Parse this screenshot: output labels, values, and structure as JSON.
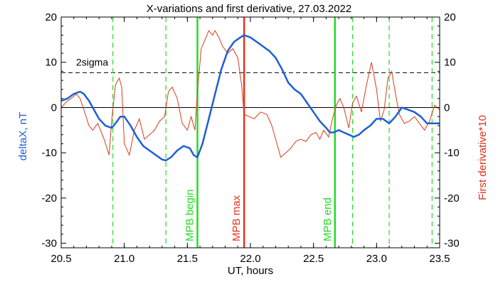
{
  "chart_data": {
    "type": "line",
    "title": "X-variations and first derivative, 27.03.2022",
    "xlabel": "UT, hours",
    "ylabel_left": "deltaX, nT",
    "ylabel_right": "First derivative*10",
    "xlim": [
      20.5,
      23.5
    ],
    "ylim_left": [
      -31,
      20
    ],
    "ylim_right": [
      -31,
      20
    ],
    "x_ticks": [
      "20.5",
      "21.0",
      "21.5",
      "22.0",
      "22.5",
      "23.0",
      "23.5"
    ],
    "y_ticks_left": [
      "20",
      "10",
      "0",
      "-10",
      "-20",
      "-30"
    ],
    "y_ticks_right": [
      "20",
      "10",
      "0",
      "-10",
      "-20",
      "-30"
    ],
    "threshold": {
      "label": "2sigma",
      "value": 7.7,
      "style": "dashed"
    },
    "zero_line": 0,
    "grid": false,
    "legend": "none",
    "colors": {
      "deltaX": "#1f5fd6",
      "derivative": "#dd3a1c",
      "mpb_markers": "#22dd22",
      "mpb_max": "#e8341c"
    },
    "vertical_lines": [
      {
        "x": 20.91,
        "style": "dashed",
        "color": "#22dd22",
        "label": ""
      },
      {
        "x": 21.33,
        "style": "dashed",
        "color": "#22dd22",
        "label": ""
      },
      {
        "x": 21.58,
        "style": "solid",
        "color": "#22dd22",
        "label": "MPB begin"
      },
      {
        "x": 21.95,
        "style": "solid",
        "color": "#e8341c",
        "label": "MPB max"
      },
      {
        "x": 22.67,
        "style": "solid",
        "color": "#22dd22",
        "label": "MPB end"
      },
      {
        "x": 22.81,
        "style": "dashed",
        "color": "#22dd22",
        "label": ""
      },
      {
        "x": 23.1,
        "style": "dashed",
        "color": "#22dd22",
        "label": ""
      },
      {
        "x": 23.44,
        "style": "dashed",
        "color": "#22dd22",
        "label": ""
      }
    ],
    "series": [
      {
        "x": [
          20.5,
          20.55,
          20.6,
          20.65,
          20.68,
          20.72,
          20.76,
          20.8,
          20.85,
          20.9,
          20.93,
          20.97,
          21.0,
          21.05,
          21.1,
          21.15,
          21.2,
          21.25,
          21.3,
          21.33,
          21.37,
          21.42,
          21.47,
          21.52,
          21.55,
          21.58,
          21.62,
          21.67,
          21.72,
          21.77,
          21.82,
          21.87,
          21.92,
          21.95,
          22.0,
          22.05,
          22.1,
          22.15,
          22.2,
          22.25,
          22.3,
          22.35,
          22.4,
          22.45,
          22.5,
          22.55,
          22.6,
          22.63,
          22.66,
          22.7,
          22.74,
          22.78,
          22.82,
          22.86,
          22.9,
          22.95,
          23.0,
          23.05,
          23.1,
          23.15,
          23.2,
          23.25,
          23.3,
          23.35,
          23.4,
          23.45,
          23.5
        ],
        "values": [
          1.5,
          2.0,
          3.0,
          3.5,
          3.0,
          1.5,
          -0.5,
          -2.5,
          -4.0,
          -4.5,
          -3.5,
          -2.0,
          -2.0,
          -4.0,
          -6.5,
          -8.5,
          -9.5,
          -10.5,
          -11.5,
          -11.7,
          -11.0,
          -9.5,
          -8.5,
          -9.0,
          -10.5,
          -11.0,
          -8.0,
          -2.5,
          3.0,
          8.5,
          12.5,
          14.5,
          15.5,
          16.0,
          15.5,
          14.5,
          13.5,
          12.5,
          11.0,
          8.5,
          5.5,
          4.0,
          3.0,
          1.0,
          -1.0,
          -3.0,
          -4.5,
          -5.5,
          -5.5,
          -5.0,
          -5.5,
          -6.0,
          -6.5,
          -6.0,
          -5.0,
          -4.0,
          -2.5,
          -2.5,
          -3.5,
          -2.0,
          0.0,
          -0.5,
          -1.0,
          -2.0,
          -3.5,
          -3.5,
          -3.5
        ]
      },
      {
        "x": [
          20.5,
          20.55,
          20.58,
          20.62,
          20.65,
          20.68,
          20.72,
          20.75,
          20.79,
          20.84,
          20.88,
          20.9,
          20.93,
          20.96,
          20.98,
          21.0,
          21.04,
          21.08,
          21.12,
          21.16,
          21.2,
          21.24,
          21.28,
          21.32,
          21.35,
          21.38,
          21.42,
          21.46,
          21.5,
          21.53,
          21.56,
          21.58,
          21.61,
          21.64,
          21.67,
          21.7,
          21.72,
          21.75,
          21.78,
          21.82,
          21.86,
          21.9,
          21.93,
          21.95,
          21.99,
          22.03,
          22.08,
          22.13,
          22.17,
          22.2,
          22.24,
          22.28,
          22.32,
          22.36,
          22.4,
          22.44,
          22.48,
          22.52,
          22.55,
          22.58,
          22.62,
          22.65,
          22.68,
          22.71,
          22.74,
          22.78,
          22.81,
          22.84,
          22.88,
          22.92,
          22.96,
          23.0,
          23.03,
          23.06,
          23.09,
          23.12,
          23.15,
          23.18,
          23.22,
          23.26,
          23.3,
          23.34,
          23.38,
          23.42,
          23.46,
          23.5
        ],
        "values": [
          0.0,
          1.5,
          2.0,
          3.0,
          2.0,
          -0.5,
          -4.0,
          -5.0,
          -3.5,
          -7.0,
          -10.5,
          -3.0,
          5.0,
          6.5,
          4.5,
          -8.0,
          -10.5,
          -5.0,
          -2.5,
          -7.0,
          -6.0,
          -5.0,
          -3.0,
          -2.0,
          3.5,
          4.5,
          2.0,
          -3.5,
          -5.0,
          -2.0,
          -5.0,
          3.5,
          13.0,
          15.0,
          17.0,
          16.0,
          17.0,
          15.5,
          13.5,
          12.0,
          13.0,
          11.0,
          5.0,
          -1.5,
          -2.0,
          -2.5,
          -1.0,
          -1.5,
          -4.0,
          -7.0,
          -11.0,
          -10.0,
          -9.0,
          -7.5,
          -7.0,
          -7.5,
          -6.0,
          -5.5,
          -7.0,
          -5.0,
          -6.5,
          -2.5,
          0.5,
          2.0,
          0.0,
          -4.5,
          1.0,
          2.5,
          -1.0,
          5.0,
          10.0,
          4.0,
          -3.0,
          -0.5,
          6.5,
          8.0,
          3.0,
          -1.5,
          -3.5,
          -3.0,
          -2.0,
          -3.5,
          -5.0,
          -3.0,
          0.5,
          -0.5
        ]
      }
    ]
  }
}
